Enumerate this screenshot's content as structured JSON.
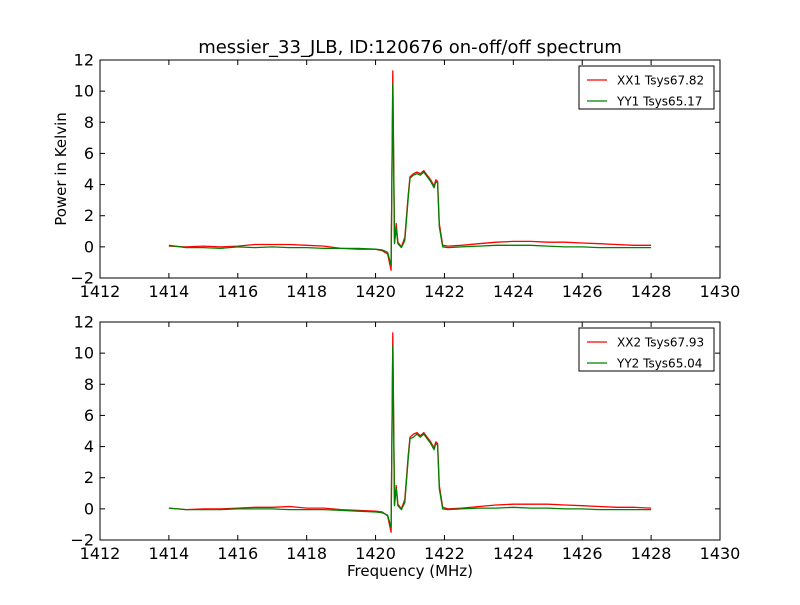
{
  "figure": {
    "title": "messier_33_JLB, ID:120676 on-off/off spectrum",
    "ylabel": "Power in Kelvin",
    "xlabel": "Frequency (MHz)"
  },
  "chart_data": [
    {
      "type": "line",
      "title": "messier_33_JLB, ID:120676 on-off/off spectrum",
      "xlabel": "",
      "ylabel": "Power in Kelvin",
      "xlim": [
        1412,
        1430
      ],
      "ylim": [
        -2,
        12
      ],
      "xticks": [
        1412,
        1414,
        1416,
        1418,
        1420,
        1422,
        1424,
        1426,
        1428,
        1430
      ],
      "yticks": [
        -2,
        0,
        2,
        4,
        6,
        8,
        10,
        12
      ],
      "legend_position": "top-right",
      "series": [
        {
          "name": "XX1 Tsys67.82",
          "color": "#ff0000",
          "x": [
            1414.0,
            1414.5,
            1415.0,
            1415.5,
            1416.0,
            1416.5,
            1417.0,
            1417.5,
            1418.0,
            1418.5,
            1419.0,
            1419.5,
            1420.0,
            1420.2,
            1420.35,
            1420.45,
            1420.5,
            1420.55,
            1420.6,
            1420.65,
            1420.75,
            1420.85,
            1420.95,
            1421.0,
            1421.1,
            1421.2,
            1421.3,
            1421.4,
            1421.5,
            1421.6,
            1421.7,
            1421.75,
            1421.8,
            1421.85,
            1421.95,
            1422.1,
            1422.5,
            1423.0,
            1423.5,
            1424.0,
            1424.5,
            1425.0,
            1425.5,
            1426.0,
            1426.5,
            1427.0,
            1427.5,
            1428.0
          ],
          "values": [
            0.05,
            0.0,
            0.05,
            0.0,
            0.05,
            0.15,
            0.15,
            0.15,
            0.1,
            0.05,
            -0.1,
            -0.15,
            -0.15,
            -0.25,
            -0.45,
            -1.5,
            11.3,
            0.3,
            1.5,
            0.3,
            0.0,
            0.6,
            3.4,
            4.5,
            4.7,
            4.8,
            4.7,
            4.9,
            4.6,
            4.3,
            3.9,
            4.3,
            4.2,
            1.5,
            0.1,
            0.05,
            0.1,
            0.2,
            0.3,
            0.35,
            0.35,
            0.3,
            0.3,
            0.25,
            0.2,
            0.15,
            0.1,
            0.1
          ]
        },
        {
          "name": "YY1 Tsys65.17",
          "color": "#008000",
          "x": [
            1414.0,
            1414.5,
            1415.0,
            1415.5,
            1416.0,
            1416.5,
            1417.0,
            1417.5,
            1418.0,
            1418.5,
            1419.0,
            1419.5,
            1420.0,
            1420.2,
            1420.35,
            1420.45,
            1420.5,
            1420.55,
            1420.6,
            1420.65,
            1420.75,
            1420.85,
            1420.95,
            1421.0,
            1421.1,
            1421.2,
            1421.3,
            1421.4,
            1421.5,
            1421.6,
            1421.7,
            1421.75,
            1421.8,
            1421.85,
            1421.95,
            1422.1,
            1422.5,
            1423.0,
            1423.5,
            1424.0,
            1424.5,
            1425.0,
            1425.5,
            1426.0,
            1426.5,
            1427.0,
            1427.5,
            1428.0
          ],
          "values": [
            0.1,
            -0.05,
            -0.05,
            -0.1,
            0.0,
            -0.05,
            0.0,
            -0.05,
            -0.05,
            -0.1,
            -0.1,
            -0.1,
            -0.15,
            -0.2,
            -0.35,
            -1.2,
            10.5,
            0.2,
            1.2,
            0.2,
            -0.05,
            0.4,
            3.2,
            4.4,
            4.6,
            4.7,
            4.6,
            4.8,
            4.5,
            4.2,
            3.8,
            4.2,
            4.1,
            1.3,
            0.0,
            -0.05,
            0.0,
            0.05,
            0.1,
            0.1,
            0.1,
            0.05,
            0.0,
            0.0,
            -0.05,
            -0.05,
            -0.05,
            -0.05
          ]
        }
      ]
    },
    {
      "type": "line",
      "title": "",
      "xlabel": "Frequency (MHz)",
      "ylabel": "",
      "xlim": [
        1412,
        1430
      ],
      "ylim": [
        -2,
        12
      ],
      "xticks": [
        1412,
        1414,
        1416,
        1418,
        1420,
        1422,
        1424,
        1426,
        1428,
        1430
      ],
      "yticks": [
        -2,
        0,
        2,
        4,
        6,
        8,
        10,
        12
      ],
      "legend_position": "top-right",
      "series": [
        {
          "name": "XX2 Tsys67.93",
          "color": "#ff0000",
          "x": [
            1414.0,
            1414.5,
            1415.0,
            1415.5,
            1416.0,
            1416.5,
            1417.0,
            1417.5,
            1418.0,
            1418.5,
            1419.0,
            1419.5,
            1420.0,
            1420.2,
            1420.35,
            1420.45,
            1420.5,
            1420.55,
            1420.6,
            1420.65,
            1420.75,
            1420.85,
            1420.95,
            1421.0,
            1421.1,
            1421.2,
            1421.3,
            1421.4,
            1421.5,
            1421.6,
            1421.7,
            1421.75,
            1421.8,
            1421.85,
            1421.95,
            1422.1,
            1422.5,
            1423.0,
            1423.5,
            1424.0,
            1424.5,
            1425.0,
            1425.5,
            1426.0,
            1426.5,
            1427.0,
            1427.5,
            1428.0
          ],
          "values": [
            0.05,
            -0.05,
            0.0,
            0.0,
            0.05,
            0.1,
            0.1,
            0.15,
            0.05,
            0.05,
            -0.05,
            -0.1,
            -0.15,
            -0.2,
            -0.45,
            -1.5,
            11.3,
            0.3,
            1.5,
            0.3,
            0.0,
            0.6,
            3.5,
            4.6,
            4.8,
            4.9,
            4.7,
            4.9,
            4.6,
            4.3,
            3.9,
            4.3,
            4.2,
            1.5,
            0.1,
            0.0,
            0.05,
            0.15,
            0.25,
            0.3,
            0.3,
            0.3,
            0.25,
            0.2,
            0.15,
            0.1,
            0.1,
            0.05
          ]
        },
        {
          "name": "YY2 Tsys65.04",
          "color": "#008000",
          "x": [
            1414.0,
            1414.5,
            1415.0,
            1415.5,
            1416.0,
            1416.5,
            1417.0,
            1417.5,
            1418.0,
            1418.5,
            1419.0,
            1419.5,
            1420.0,
            1420.2,
            1420.35,
            1420.45,
            1420.5,
            1420.55,
            1420.6,
            1420.65,
            1420.75,
            1420.85,
            1420.95,
            1421.0,
            1421.1,
            1421.2,
            1421.3,
            1421.4,
            1421.5,
            1421.6,
            1421.7,
            1421.75,
            1421.8,
            1421.85,
            1421.95,
            1422.1,
            1422.5,
            1423.0,
            1423.5,
            1424.0,
            1424.5,
            1425.0,
            1425.5,
            1426.0,
            1426.5,
            1427.0,
            1427.5,
            1428.0
          ],
          "values": [
            0.05,
            -0.05,
            -0.05,
            -0.05,
            0.0,
            0.0,
            0.0,
            -0.05,
            -0.05,
            -0.05,
            -0.1,
            -0.15,
            -0.2,
            -0.25,
            -0.4,
            -1.2,
            10.5,
            0.2,
            1.3,
            0.2,
            -0.05,
            0.4,
            3.3,
            4.5,
            4.6,
            4.8,
            4.6,
            4.8,
            4.5,
            4.2,
            3.8,
            4.2,
            4.1,
            1.3,
            0.0,
            -0.05,
            0.0,
            0.05,
            0.05,
            0.1,
            0.05,
            0.05,
            0.0,
            0.0,
            -0.05,
            -0.05,
            -0.05,
            -0.05
          ]
        }
      ]
    }
  ]
}
